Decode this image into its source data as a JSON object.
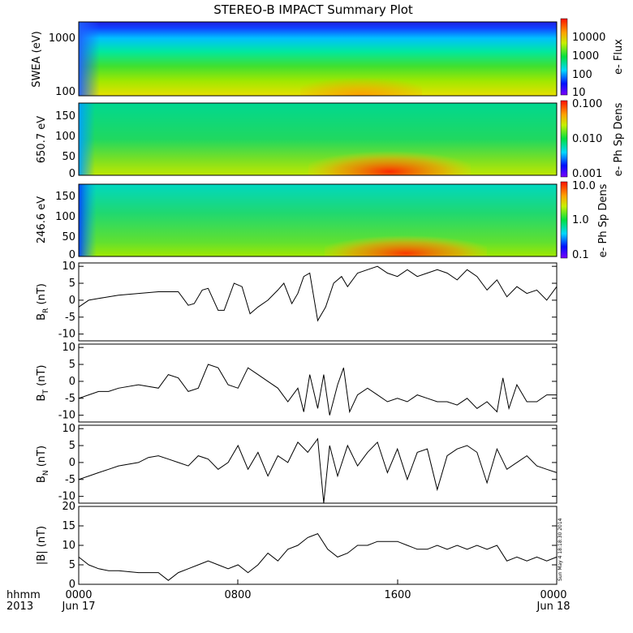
{
  "chart_data": {
    "title": "STEREO-B IMPACT Summary Plot",
    "x_tick_labels": [
      "0000",
      "0800",
      "1600",
      "0000"
    ],
    "x_date_labels": [
      "Jun 17",
      "Jun 18"
    ],
    "corner_labels": {
      "format": "hhmm",
      "year": "2013"
    },
    "timestamp": "Sun May  4 18:18:30 2014",
    "panels": [
      {
        "type": "heatmap",
        "ylabel": "SWEA (eV)",
        "y_tick_labels": [
          "1000",
          "100"
        ],
        "colorbar_label": "e- Flux",
        "colorbar_ticks": [
          "10000",
          "1000",
          "100",
          "10"
        ],
        "log_scale": true
      },
      {
        "type": "heatmap",
        "ylabel": "650.7 eV",
        "y_tick_labels": [
          "150",
          "100",
          "50",
          "0"
        ],
        "ylim": [
          0,
          180
        ],
        "colorbar_label": "e- Ph Sp Dens",
        "colorbar_ticks": [
          "0.100",
          "0.010",
          "0.001"
        ],
        "log_scale": true
      },
      {
        "type": "heatmap",
        "ylabel": "246.6 eV",
        "y_tick_labels": [
          "150",
          "100",
          "50",
          "0"
        ],
        "ylim": [
          0,
          180
        ],
        "colorbar_label": "e- Ph Sp Dens",
        "colorbar_ticks": [
          "10.0",
          "1.0",
          "0.1"
        ],
        "log_scale": true
      },
      {
        "type": "line",
        "ylabel_main": "B",
        "ylabel_sub": "R",
        "ylabel_unit": " (nT)",
        "ylim": [
          -12,
          11
        ],
        "y_ticks": [
          10,
          5,
          0,
          -5,
          -10
        ],
        "y_tick_labels": [
          "10",
          "5",
          "0",
          "-5",
          "-10"
        ],
        "x": [
          0,
          0.5,
          1,
          1.5,
          2,
          3,
          4,
          5,
          5.5,
          5.8,
          6.2,
          6.5,
          7,
          7.3,
          7.8,
          8.2,
          8.6,
          9,
          9.5,
          10,
          10.3,
          10.7,
          11,
          11.3,
          11.6,
          12,
          12.4,
          12.8,
          13.2,
          13.5,
          14,
          14.5,
          15,
          15.5,
          16,
          16.5,
          17,
          17.5,
          18,
          18.5,
          19,
          19.5,
          20,
          20.5,
          21,
          21.5,
          22,
          22.5,
          23,
          23.5,
          24
        ],
        "y": [
          -2,
          0,
          0.5,
          1,
          1.5,
          2,
          2.5,
          2.5,
          -1.5,
          -1,
          3,
          3.5,
          -3,
          -3,
          5,
          4,
          -4,
          -2,
          0,
          3,
          5,
          -1,
          2,
          7,
          8,
          -6,
          -2,
          5,
          7,
          4,
          8,
          9,
          10,
          8,
          7,
          9,
          7,
          8,
          9,
          8,
          6,
          9,
          7,
          3,
          6,
          1,
          4,
          2,
          3,
          0,
          4
        ]
      },
      {
        "type": "line",
        "ylabel_main": "B",
        "ylabel_sub": "T",
        "ylabel_unit": " (nT)",
        "ylim": [
          -12,
          11
        ],
        "y_ticks": [
          10,
          5,
          0,
          -5,
          -10
        ],
        "y_tick_labels": [
          "10",
          "5",
          "0",
          "-5",
          "-10"
        ],
        "x": [
          0,
          0.5,
          1,
          1.5,
          2,
          3,
          4,
          4.5,
          5,
          5.5,
          6,
          6.5,
          7,
          7.5,
          8,
          8.5,
          9,
          9.5,
          10,
          10.5,
          11,
          11.3,
          11.6,
          12,
          12.3,
          12.6,
          13,
          13.3,
          13.6,
          14,
          14.5,
          15,
          15.5,
          16,
          16.5,
          17,
          17.5,
          18,
          18.5,
          19,
          19.5,
          20,
          20.5,
          21,
          21.3,
          21.6,
          22,
          22.5,
          23,
          23.5,
          24
        ],
        "y": [
          -5,
          -4,
          -3,
          -3,
          -2,
          -1,
          -2,
          2,
          1,
          -3,
          -2,
          5,
          4,
          -1,
          -2,
          4,
          2,
          0,
          -2,
          -6,
          -2,
          -9,
          2,
          -8,
          2,
          -10,
          -1,
          4,
          -9,
          -4,
          -2,
          -4,
          -6,
          -5,
          -6,
          -4,
          -5,
          -6,
          -6,
          -7,
          -5,
          -8,
          -6,
          -9,
          1,
          -8,
          -1,
          -6,
          -6,
          -4,
          -4
        ]
      },
      {
        "type": "line",
        "ylabel_main": "B",
        "ylabel_sub": "N",
        "ylabel_unit": " (nT)",
        "ylim": [
          -12,
          11
        ],
        "y_ticks": [
          10,
          5,
          0,
          -5,
          -10
        ],
        "y_tick_labels": [
          "10",
          "5",
          "0",
          "-5",
          "-10"
        ],
        "x": [
          0,
          0.5,
          1,
          1.5,
          2,
          3,
          3.5,
          4,
          4.5,
          5,
          5.5,
          6,
          6.5,
          7,
          7.5,
          8,
          8.5,
          9,
          9.5,
          10,
          10.5,
          11,
          11.5,
          12,
          12.3,
          12.6,
          13,
          13.5,
          14,
          14.5,
          15,
          15.5,
          16,
          16.5,
          17,
          17.5,
          18,
          18.5,
          19,
          19.5,
          20,
          20.5,
          21,
          21.5,
          22,
          22.5,
          23,
          23.5,
          24
        ],
        "y": [
          -5,
          -4,
          -3,
          -2,
          -1,
          0,
          1.5,
          2,
          1,
          0,
          -1,
          2,
          1,
          -2,
          0,
          5,
          -2,
          3,
          -4,
          2,
          0,
          6,
          3,
          7,
          -12,
          5,
          -4,
          5,
          -1,
          3,
          6,
          -3,
          4,
          -5,
          3,
          4,
          -8,
          2,
          4,
          5,
          3,
          -6,
          4,
          -2,
          0,
          2,
          -1,
          -2,
          -3
        ]
      },
      {
        "type": "line",
        "ylabel": "|B| (nT)",
        "ylim": [
          0,
          20
        ],
        "y_ticks": [
          20,
          15,
          10,
          5,
          0
        ],
        "y_tick_labels": [
          "20",
          "15",
          "10",
          "5",
          "0"
        ],
        "x": [
          0,
          0.5,
          1,
          1.5,
          2,
          3,
          4,
          4.5,
          5,
          5.5,
          6,
          6.5,
          7,
          7.5,
          8,
          8.5,
          9,
          9.5,
          10,
          10.5,
          11,
          11.5,
          12,
          12.5,
          13,
          13.5,
          14,
          14.5,
          15,
          15.5,
          16,
          16.5,
          17,
          17.5,
          18,
          18.5,
          19,
          19.5,
          20,
          20.5,
          21,
          21.5,
          22,
          22.5,
          23,
          23.5,
          24
        ],
        "y": [
          7,
          5,
          4,
          3.5,
          3.5,
          3,
          3,
          1,
          3,
          4,
          5,
          6,
          5,
          4,
          5,
          3,
          5,
          8,
          6,
          9,
          10,
          12,
          13,
          9,
          7,
          8,
          10,
          10,
          11,
          11,
          11,
          10,
          9,
          9,
          10,
          9,
          10,
          9,
          10,
          9,
          10,
          6,
          7,
          6,
          7,
          6,
          7
        ]
      }
    ]
  }
}
